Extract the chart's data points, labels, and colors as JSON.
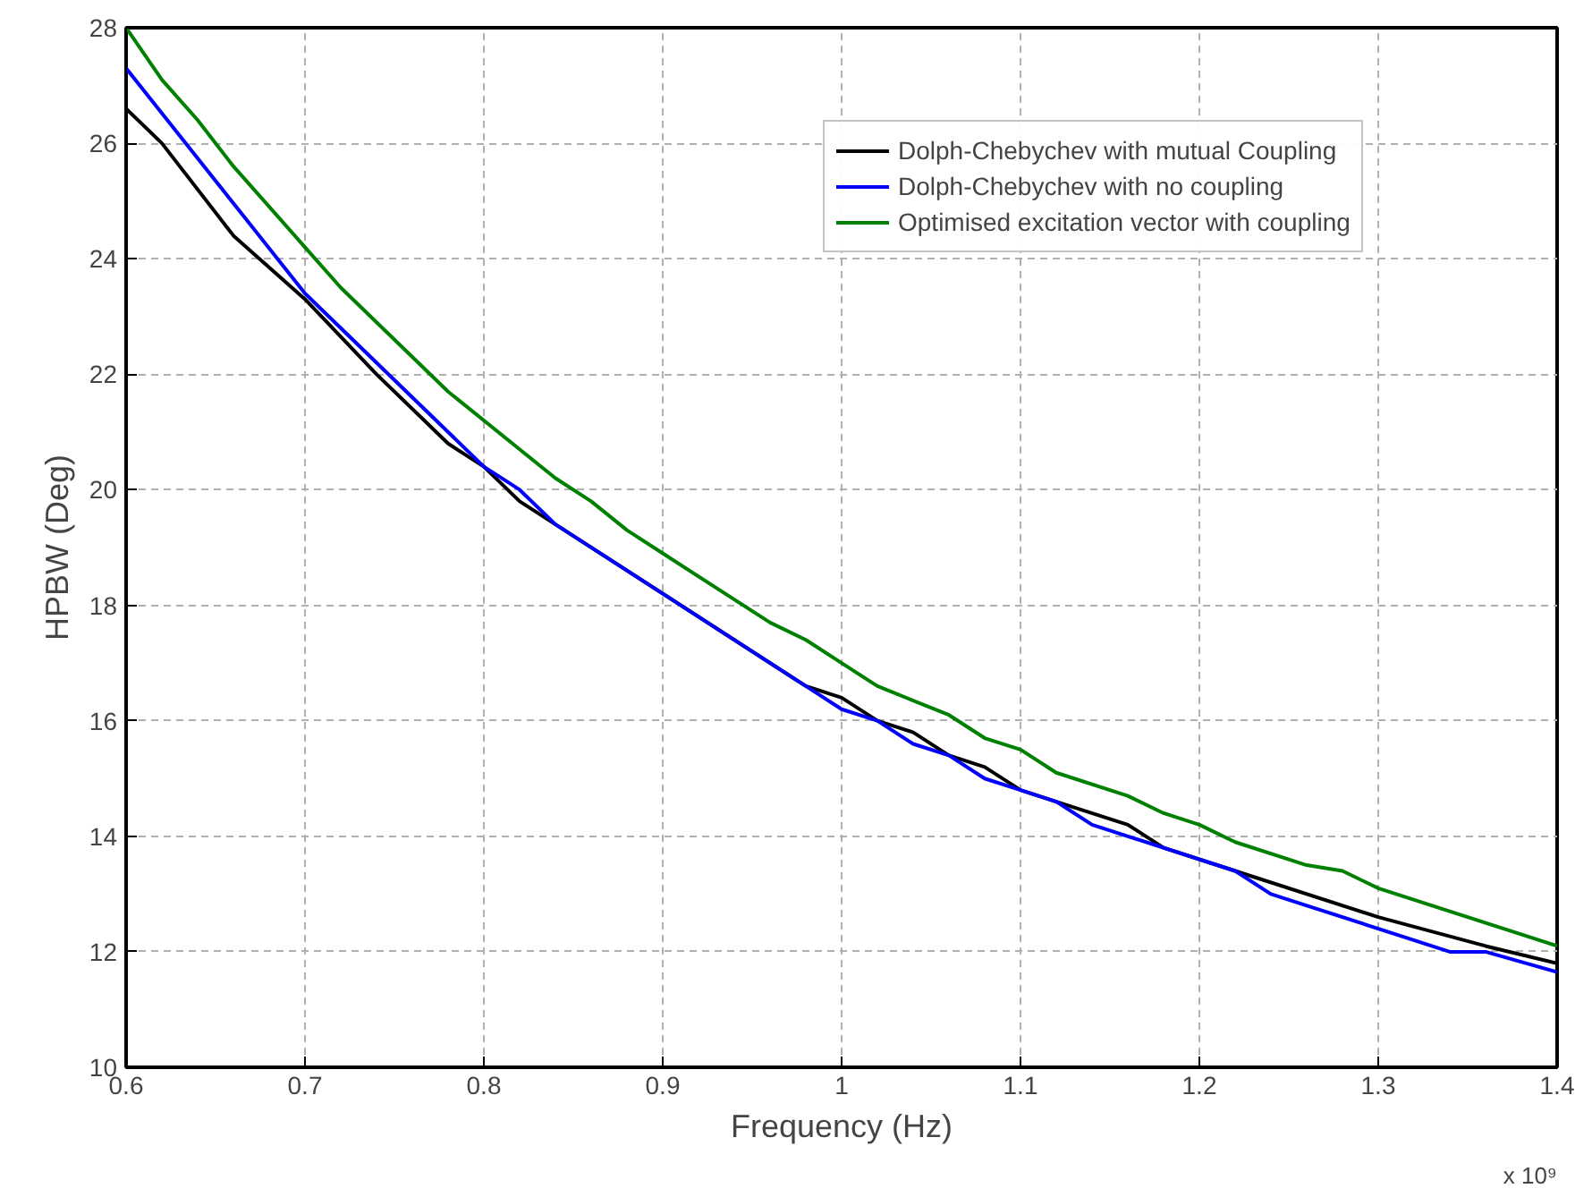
{
  "chart_data": {
    "type": "line",
    "xlabel": "Frequency (Hz)",
    "ylabel": "HPBW (Deg)",
    "annotations": [
      "x 10⁹"
    ],
    "xlim": [
      0.6,
      1.4
    ],
    "xticks": [
      0.6,
      0.7,
      0.8,
      0.9,
      1,
      1.1,
      1.2,
      1.3,
      1.4
    ],
    "ylim": [
      10,
      28
    ],
    "yticks": [
      10,
      12,
      14,
      16,
      18,
      20,
      22,
      24,
      26,
      28
    ],
    "grid": true,
    "legend": "top right",
    "line_style": "solid",
    "series": [
      {
        "name": "Dolph-Chebychev with mutual Coupling",
        "color": "#000000",
        "x": [
          0.6,
          0.62,
          0.66,
          0.7,
          0.74,
          0.78,
          0.8,
          0.82,
          0.84,
          0.98,
          1.0,
          1.02,
          1.04,
          1.06,
          1.08,
          1.1,
          1.12,
          1.16,
          1.18,
          1.22,
          1.3,
          1.36,
          1.4
        ],
        "values": [
          26.6,
          26.0,
          24.4,
          23.3,
          22.0,
          20.8,
          20.4,
          19.8,
          19.4,
          16.6,
          16.4,
          16.0,
          15.8,
          15.4,
          15.2,
          14.8,
          14.6,
          14.2,
          13.8,
          13.4,
          12.6,
          12.1,
          11.8
        ]
      },
      {
        "name": "Dolph-Chebychev with no coupling",
        "color": "#0000ff",
        "x": [
          0.6,
          0.7,
          0.8,
          0.82,
          0.84,
          0.98,
          1.0,
          1.02,
          1.04,
          1.06,
          1.08,
          1.1,
          1.12,
          1.14,
          1.22,
          1.24,
          1.34,
          1.36,
          1.4
        ],
        "values": [
          27.3,
          23.4,
          20.4,
          20.0,
          19.4,
          16.6,
          16.2,
          16.0,
          15.6,
          15.4,
          15.0,
          14.8,
          14.6,
          14.2,
          13.4,
          13.0,
          12.0,
          12.0,
          11.65
        ]
      },
      {
        "name": "Optimised excitation vector with coupling",
        "color": "#008000",
        "x": [
          0.6,
          0.62,
          0.64,
          0.66,
          0.7,
          0.72,
          0.78,
          0.82,
          0.84,
          0.86,
          0.88,
          0.9,
          0.96,
          0.98,
          1.0,
          1.02,
          1.06,
          1.08,
          1.1,
          1.12,
          1.16,
          1.18,
          1.2,
          1.22,
          1.26,
          1.28,
          1.3,
          1.4
        ],
        "values": [
          28.0,
          27.1,
          26.4,
          25.6,
          24.2,
          23.5,
          21.7,
          20.7,
          20.2,
          19.8,
          19.3,
          18.9,
          17.7,
          17.4,
          17.0,
          16.6,
          16.1,
          15.7,
          15.5,
          15.1,
          14.7,
          14.4,
          14.2,
          13.9,
          13.5,
          13.4,
          13.1,
          12.1
        ]
      }
    ]
  }
}
